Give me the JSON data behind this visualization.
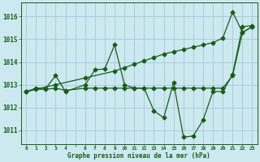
{
  "title": "Graphe pression niveau de la mer (hPa)",
  "background_color": "#cce9f0",
  "grid_color": "#aaccdd",
  "line_color": "#1a5c1a",
  "xlim": [
    -0.5,
    23.5
  ],
  "ylim": [
    1010.4,
    1016.6
  ],
  "yticks": [
    1011,
    1012,
    1013,
    1014,
    1015,
    1016
  ],
  "xticks": [
    0,
    1,
    2,
    3,
    4,
    5,
    6,
    7,
    8,
    9,
    10,
    11,
    12,
    13,
    14,
    15,
    16,
    17,
    18,
    19,
    20,
    21,
    22,
    23
  ],
  "x_labels": [
    "0",
    "1",
    "2",
    "3",
    "4",
    "",
    "6",
    "7",
    "8",
    "9",
    "10",
    "11",
    "12",
    "13",
    "14",
    "15",
    "16",
    "17",
    "18",
    "19",
    "20",
    "21",
    "22",
    "23"
  ],
  "series1_x": [
    0,
    1,
    2,
    3,
    4,
    6,
    7,
    8,
    9,
    10,
    11,
    12,
    13,
    14,
    15,
    16,
    17,
    18,
    19,
    20,
    21,
    22,
    23
  ],
  "series1_y": [
    1012.7,
    1012.85,
    1012.85,
    1013.4,
    1012.7,
    1013.0,
    1013.65,
    1013.7,
    1014.75,
    1013.0,
    1012.85,
    1012.85,
    1011.85,
    1011.55,
    1013.1,
    1010.7,
    1010.75,
    1011.45,
    1012.7,
    1012.7,
    1013.45,
    1015.55,
    1015.6
  ],
  "series2_x": [
    0,
    1,
    2,
    3,
    4,
    6,
    7,
    8,
    9,
    10,
    11,
    12,
    13,
    14,
    15,
    16,
    17,
    18,
    19,
    20,
    21,
    22,
    23
  ],
  "series2_y": [
    1012.7,
    1012.8,
    1012.8,
    1012.85,
    1012.75,
    1012.85,
    1012.85,
    1012.85,
    1012.85,
    1012.85,
    1012.85,
    1012.85,
    1012.85,
    1012.85,
    1012.85,
    1012.85,
    1012.85,
    1012.85,
    1012.85,
    1012.85,
    1013.4,
    1015.3,
    1015.55
  ],
  "series3_x": [
    0,
    3,
    6,
    9,
    10,
    11,
    12,
    13,
    14,
    15,
    16,
    17,
    18,
    19,
    20,
    21,
    22,
    23
  ],
  "series3_y": [
    1012.7,
    1013.0,
    1013.3,
    1013.6,
    1013.75,
    1013.9,
    1014.05,
    1014.2,
    1014.35,
    1014.45,
    1014.55,
    1014.65,
    1014.75,
    1014.85,
    1015.05,
    1016.2,
    1015.3,
    1015.55
  ]
}
